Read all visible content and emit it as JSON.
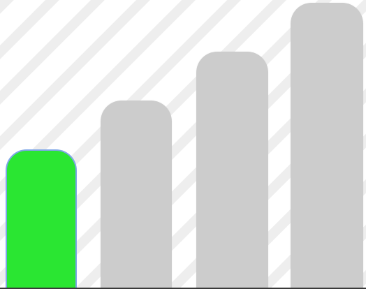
{
  "signal_meter": {
    "level": 1,
    "max_level": 4,
    "bars": [
      {
        "state": "active"
      },
      {
        "state": "inactive"
      },
      {
        "state": "inactive"
      },
      {
        "state": "inactive"
      }
    ],
    "colors": {
      "active": "#2ae632",
      "active_outline": "#7fa6e8",
      "inactive": "#cccccc",
      "background": "#ffffff",
      "stripe": "#eeeeee",
      "baseline": "#3a3a3a"
    }
  }
}
